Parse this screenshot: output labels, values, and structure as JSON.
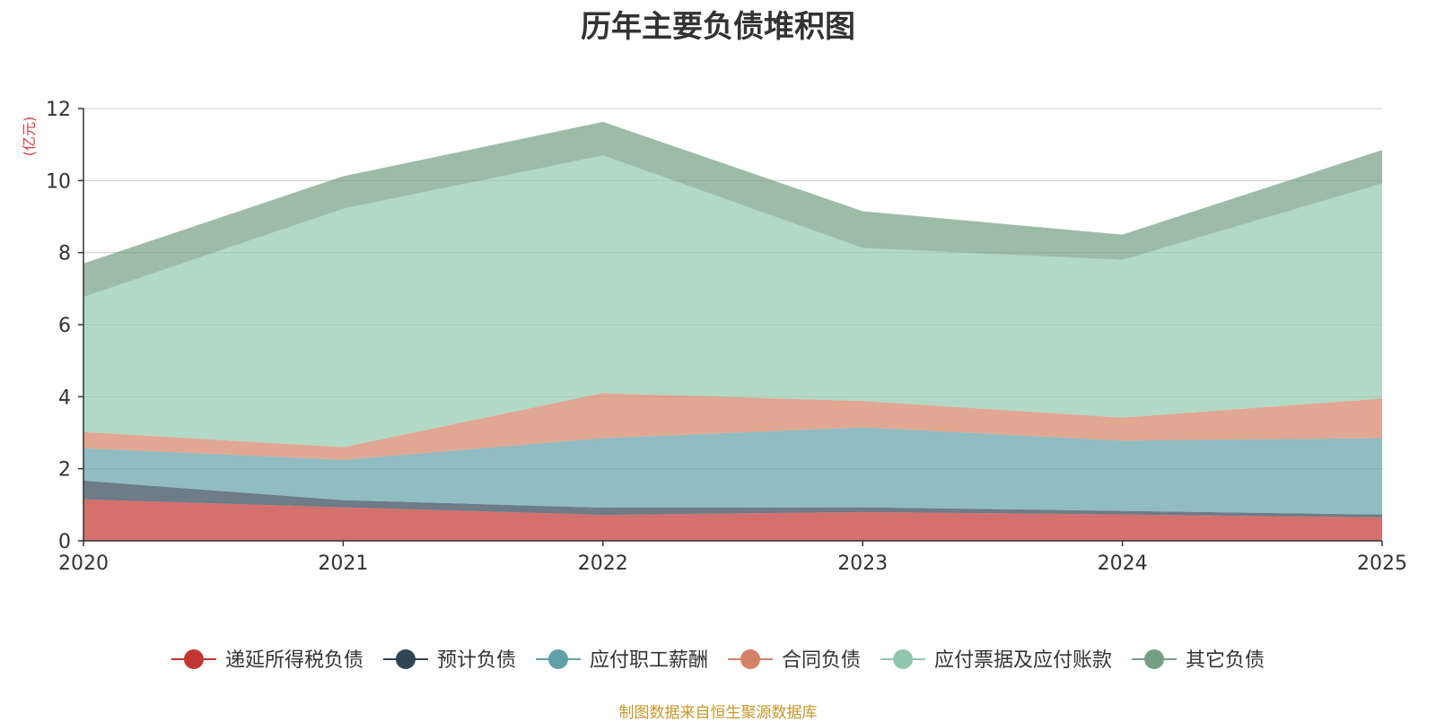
{
  "page_title": "历年主要负债堆积图",
  "unit_label": "(亿元)",
  "source_note": "制图数据来自恒生聚源数据库",
  "colors": {
    "axis": "#333333",
    "grid": "#cccccc",
    "unit": "#e4393c",
    "source": "#c8962a"
  },
  "chart_data": {
    "type": "area",
    "stacked": true,
    "title": "历年主要负债堆积图",
    "ylabel": "(亿元)",
    "xlabel": "",
    "x": [
      "2020",
      "2021",
      "2022",
      "2023",
      "2024",
      "2025"
    ],
    "ylim": [
      0,
      12
    ],
    "yticks": [
      "0",
      "2",
      "4",
      "6",
      "8",
      "10",
      "12"
    ],
    "grid": true,
    "legend_position": "bottom",
    "series": [
      {
        "name": "递延所得税负债",
        "color": "#c23531",
        "values": [
          1.15,
          0.93,
          0.72,
          0.8,
          0.73,
          0.65
        ]
      },
      {
        "name": "预计负债",
        "color": "#2f4554",
        "values": [
          0.52,
          0.2,
          0.2,
          0.13,
          0.1,
          0.08
        ]
      },
      {
        "name": "应付职工薪酬",
        "color": "#61a0a8",
        "values": [
          0.9,
          1.12,
          1.93,
          2.22,
          1.95,
          2.12
        ]
      },
      {
        "name": "合同负债",
        "color": "#d48265",
        "values": [
          0.45,
          0.35,
          1.25,
          0.73,
          0.64,
          1.1
        ]
      },
      {
        "name": "应付票据及应付账款",
        "color": "#91c7ae",
        "values": [
          3.75,
          6.62,
          6.6,
          4.25,
          4.38,
          5.97
        ]
      },
      {
        "name": "其它负债",
        "color": "#749f83",
        "values": [
          0.93,
          0.9,
          0.93,
          1.02,
          0.7,
          0.93
        ]
      }
    ]
  }
}
